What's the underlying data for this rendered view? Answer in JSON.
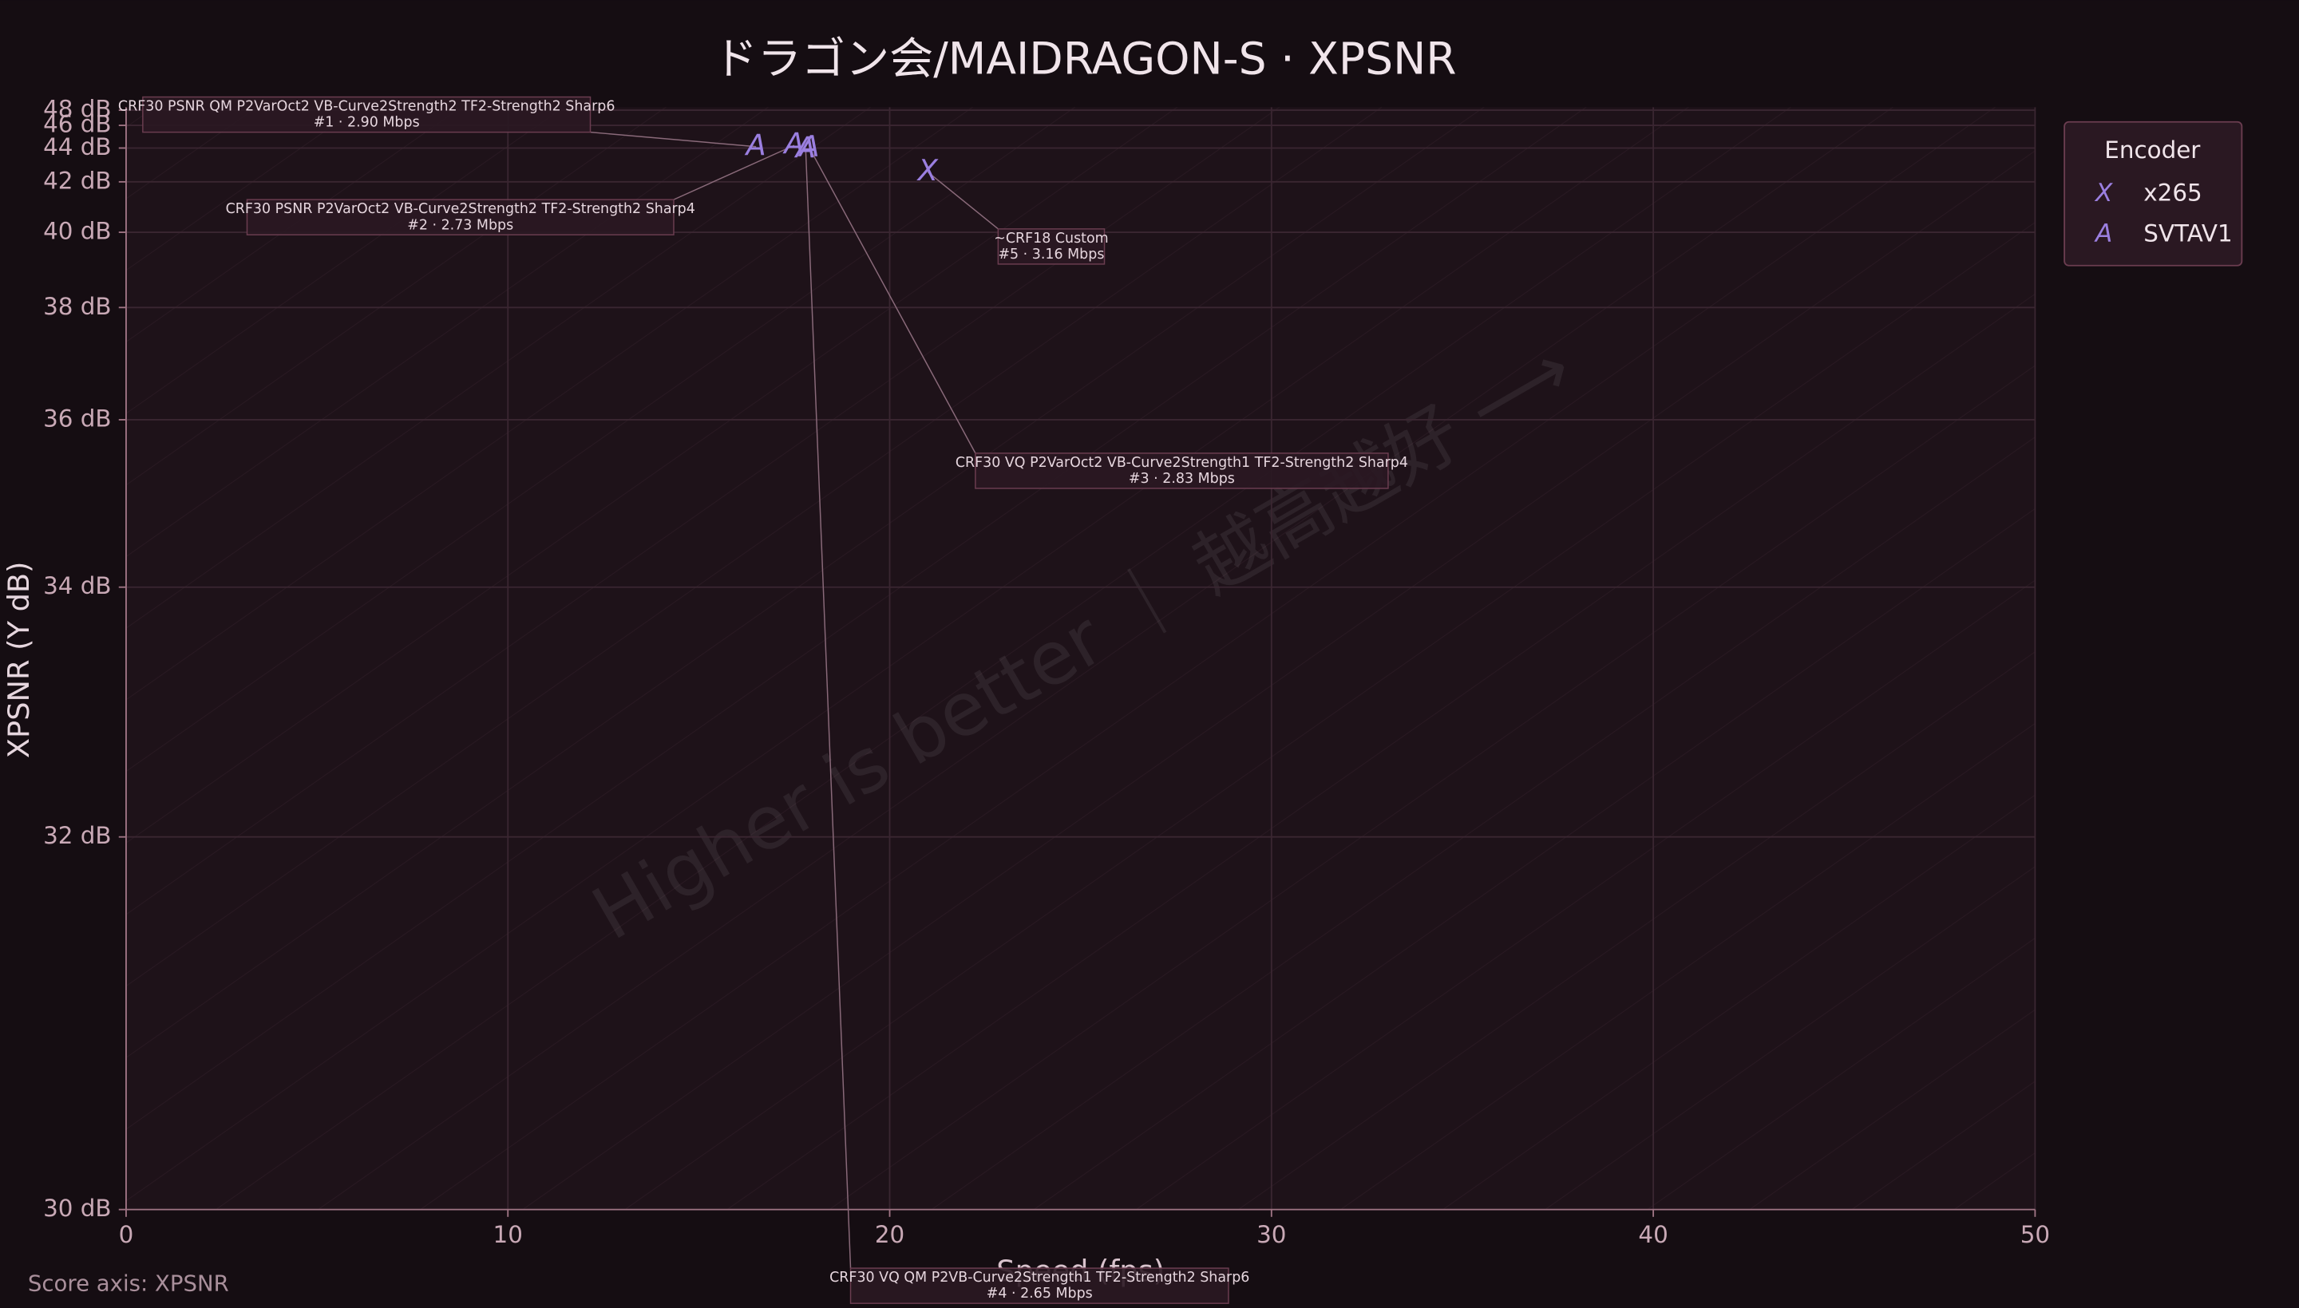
{
  "chart_data": {
    "type": "scatter",
    "title": "ドラゴン会/MAIDRAGON-S · XPSNR",
    "x_label": "Speed (fps)",
    "y_label": "XPSNR (Y dB)",
    "xlim": [
      0,
      50
    ],
    "xticks": [
      0,
      10,
      20,
      30,
      40,
      50
    ],
    "ylim": [
      30,
      48
    ],
    "yticks": [
      {
        "value": 30,
        "label": "30 dB"
      },
      {
        "value": 32,
        "label": "32 dB"
      },
      {
        "value": 34,
        "label": "34 dB"
      },
      {
        "value": 36,
        "label": "36 dB"
      },
      {
        "value": 38,
        "label": "38 dB"
      },
      {
        "value": 40,
        "label": "40 dB"
      },
      {
        "value": 42,
        "label": "42 dB"
      },
      {
        "value": 44,
        "label": "44 dB"
      },
      {
        "value": 46,
        "label": "46 dB"
      },
      {
        "value": 48,
        "label": "48 dB"
      }
    ],
    "grid": true,
    "legend_title": "Encoder",
    "legend_position": "outside-right",
    "watermark": "Higher is better ｜ 越高越好 ⟶",
    "footnote": "Score axis: XPSNR",
    "series": [
      {
        "name": "x265",
        "marker": "X",
        "color": "#9b7fe0",
        "x": [
          21.0
        ],
        "values": [
          42.5
        ],
        "labels": [
          "~CRF18 Custom"
        ],
        "details": [
          "#5 · 3.16 Mbps"
        ]
      },
      {
        "name": "SVTAV1",
        "marker": "A",
        "color": "#9b7fe0",
        "x": [
          16.5,
          17.5,
          17.9,
          17.8
        ],
        "values": [
          44.1,
          44.2,
          44.0,
          43.9
        ],
        "labels": [
          "CRF30 PSNR QM P2VarOct2 VB-Curve2Strength2 TF2-Strength2 Sharp6",
          "CRF30 PSNR P2VarOct2 VB-Curve2Strength2 TF2-Strength2 Sharp4",
          "CRF30 VQ P2VarOct2 VB-Curve2Strength1 TF2-Strength2 Sharp4",
          "CRF30 VQ QM P2VB-Curve2Strength1 TF2-Strength2 Sharp6"
        ],
        "details": [
          "#1 · 2.90 Mbps",
          "#2 · 2.73 Mbps",
          "#3 · 2.83 Mbps",
          "#4 · 2.65 Mbps"
        ]
      }
    ]
  }
}
